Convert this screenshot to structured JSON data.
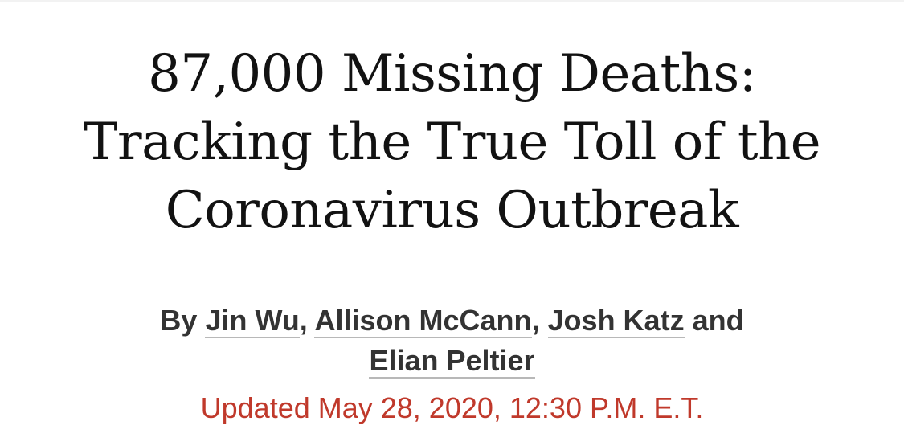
{
  "article": {
    "headline_lines": [
      "87,000 Missing Deaths:",
      "Tracking the True Toll of the",
      "Coronavirus Outbreak"
    ],
    "byline": {
      "prefix": "By",
      "authors": [
        "Jin Wu",
        "Allison McCann",
        "Josh Katz",
        "Elian Peltier"
      ],
      "separator": ",",
      "conjunction": "and"
    },
    "timestamp": "Updated May 28, 2020, 12:30 P.M. E.T."
  },
  "colors": {
    "headline": "#121212",
    "byline": "#333333",
    "timestamp": "#c0392b"
  }
}
